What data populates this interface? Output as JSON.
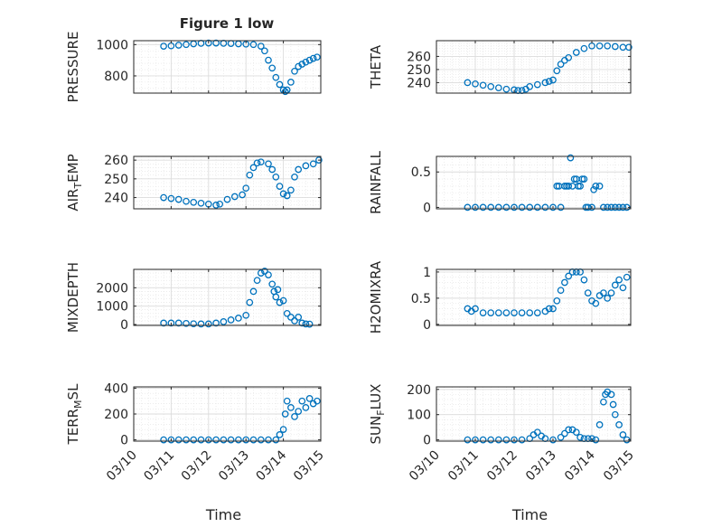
{
  "figure_title": "Figure 1 low",
  "marker_color": "#0072bd",
  "chart_data": [
    {
      "type": "scatter",
      "marker": "circle",
      "ylabel": "PRESSURE",
      "xlim": [
        0,
        5
      ],
      "ylim": [
        690,
        1025
      ],
      "yticks": [
        800,
        1000
      ],
      "yticklabels": [
        "800",
        "1000"
      ],
      "xticks": [
        0,
        1,
        2,
        3,
        4,
        5
      ],
      "xticklabels": [
        "03/10",
        "03/11",
        "03/12",
        "03/13",
        "03/14",
        "03/15"
      ],
      "grid": true,
      "minor_grid": true,
      "show_xticklabels": false,
      "xlabel": "",
      "x": [
        0.8,
        1.0,
        1.2,
        1.4,
        1.6,
        1.8,
        2.0,
        2.2,
        2.4,
        2.6,
        2.8,
        3.0,
        3.2,
        3.4,
        3.5,
        3.6,
        3.7,
        3.8,
        3.9,
        4.0,
        4.05,
        4.1,
        4.2,
        4.3,
        4.4,
        4.5,
        4.6,
        4.7,
        4.8,
        4.9
      ],
      "y": [
        990,
        992,
        996,
        1000,
        1005,
        1008,
        1010,
        1010,
        1008,
        1007,
        1005,
        1003,
        1000,
        990,
        960,
        900,
        850,
        790,
        745,
        710,
        700,
        710,
        760,
        830,
        860,
        875,
        888,
        900,
        912,
        920
      ]
    },
    {
      "type": "scatter",
      "marker": "circle",
      "ylabel": "THETA",
      "xlim": [
        0,
        5
      ],
      "ylim": [
        232,
        272
      ],
      "yticks": [
        240,
        250,
        260
      ],
      "yticklabels": [
        "240",
        "250",
        "260"
      ],
      "xticks": [
        0,
        1,
        2,
        3,
        4,
        5
      ],
      "xticklabels": [
        "03/10",
        "03/11",
        "03/12",
        "03/13",
        "03/14",
        "03/15"
      ],
      "grid": true,
      "minor_grid": true,
      "show_xticklabels": false,
      "xlabel": "",
      "x": [
        0.8,
        1.0,
        1.2,
        1.4,
        1.6,
        1.8,
        2.0,
        2.1,
        2.2,
        2.3,
        2.4,
        2.6,
        2.8,
        2.9,
        3.0,
        3.1,
        3.2,
        3.3,
        3.4,
        3.6,
        3.8,
        4.0,
        4.2,
        4.4,
        4.6,
        4.8,
        4.95
      ],
      "y": [
        240,
        239,
        238,
        237,
        236,
        235,
        234.5,
        234,
        234,
        235,
        237,
        238.5,
        240,
        241,
        242,
        249,
        254,
        257,
        259,
        263,
        266,
        268,
        268,
        268,
        267.5,
        267,
        267
      ]
    },
    {
      "type": "scatter",
      "marker": "circle",
      "ylabel": "AIR_TEMP",
      "xlim": [
        0,
        5
      ],
      "ylim": [
        234,
        262
      ],
      "yticks": [
        240,
        250,
        260
      ],
      "yticklabels": [
        "240",
        "250",
        "260"
      ],
      "xticks": [
        0,
        1,
        2,
        3,
        4,
        5
      ],
      "xticklabels": [
        "03/10",
        "03/11",
        "03/12",
        "03/13",
        "03/14",
        "03/15"
      ],
      "grid": true,
      "minor_grid": true,
      "show_xticklabels": false,
      "xlabel": "",
      "x": [
        0.8,
        1.0,
        1.2,
        1.4,
        1.6,
        1.8,
        2.0,
        2.2,
        2.3,
        2.5,
        2.7,
        2.9,
        3.0,
        3.1,
        3.2,
        3.3,
        3.4,
        3.6,
        3.7,
        3.8,
        3.9,
        4.0,
        4.1,
        4.2,
        4.3,
        4.4,
        4.6,
        4.8,
        4.95
      ],
      "y": [
        240,
        239.5,
        239,
        238,
        237.5,
        237,
        236.5,
        236,
        236.5,
        239,
        240.5,
        241.5,
        245,
        252,
        256,
        258.5,
        259,
        258,
        255,
        251,
        246,
        242,
        241,
        244,
        251,
        255,
        257,
        258,
        260
      ]
    },
    {
      "type": "scatter",
      "marker": "circle",
      "ylabel": "RAINFALL",
      "xlim": [
        0,
        5
      ],
      "ylim": [
        -0.02,
        0.72
      ],
      "yticks": [
        0,
        0.5
      ],
      "yticklabels": [
        "0",
        "0.5"
      ],
      "xticks": [
        0,
        1,
        2,
        3,
        4,
        5
      ],
      "xticklabels": [
        "03/10",
        "03/11",
        "03/12",
        "03/13",
        "03/14",
        "03/15"
      ],
      "grid": true,
      "minor_grid": true,
      "show_xticklabels": false,
      "xlabel": "",
      "x": [
        0.8,
        1.0,
        1.2,
        1.4,
        1.6,
        1.8,
        2.0,
        2.2,
        2.4,
        2.6,
        2.8,
        3.0,
        3.1,
        3.15,
        3.2,
        3.3,
        3.35,
        3.4,
        3.45,
        3.5,
        3.55,
        3.6,
        3.65,
        3.7,
        3.75,
        3.8,
        3.85,
        3.9,
        4.0,
        4.05,
        4.1,
        4.2,
        4.3,
        4.4,
        4.5,
        4.6,
        4.7,
        4.8,
        4.9
      ],
      "y": [
        0,
        0,
        0,
        0,
        0,
        0,
        0,
        0,
        0,
        0,
        0,
        0,
        0.3,
        0.3,
        0,
        0.3,
        0.3,
        0.3,
        0.7,
        0.3,
        0.4,
        0.4,
        0.3,
        0.3,
        0.4,
        0.4,
        0,
        0,
        0,
        0.25,
        0.3,
        0.3,
        0,
        0,
        0,
        0,
        0,
        0,
        0
      ]
    },
    {
      "type": "scatter",
      "marker": "circle",
      "ylabel": "MIXDEPTH",
      "xlim": [
        0,
        5
      ],
      "ylim": [
        -50,
        3000
      ],
      "yticks": [
        0,
        1000,
        2000
      ],
      "yticklabels": [
        "0",
        "1000",
        "2000"
      ],
      "xticks": [
        0,
        1,
        2,
        3,
        4,
        5
      ],
      "xticklabels": [
        "03/10",
        "03/11",
        "03/12",
        "03/13",
        "03/14",
        "03/15"
      ],
      "grid": true,
      "minor_grid": true,
      "show_xticklabels": false,
      "xlabel": "",
      "x": [
        0.8,
        1.0,
        1.2,
        1.4,
        1.6,
        1.8,
        2.0,
        2.2,
        2.4,
        2.6,
        2.8,
        3.0,
        3.1,
        3.2,
        3.3,
        3.4,
        3.5,
        3.6,
        3.7,
        3.75,
        3.8,
        3.85,
        3.9,
        4.0,
        4.1,
        4.2,
        4.3,
        4.4,
        4.5,
        4.6,
        4.7
      ],
      "y": [
        80,
        80,
        80,
        60,
        40,
        30,
        30,
        80,
        150,
        250,
        350,
        500,
        1200,
        1800,
        2400,
        2800,
        2900,
        2700,
        2200,
        1800,
        1500,
        1900,
        1200,
        1300,
        600,
        400,
        200,
        400,
        80,
        30,
        20
      ]
    },
    {
      "type": "scatter",
      "marker": "circle",
      "ylabel": "H2OMIXRA",
      "xlim": [
        0,
        5
      ],
      "ylim": [
        -0.02,
        1.05
      ],
      "yticks": [
        0,
        0.5,
        1
      ],
      "yticklabels": [
        "0",
        "0.5",
        "1"
      ],
      "xticks": [
        0,
        1,
        2,
        3,
        4,
        5
      ],
      "xticklabels": [
        "03/10",
        "03/11",
        "03/12",
        "03/13",
        "03/14",
        "03/15"
      ],
      "grid": true,
      "minor_grid": true,
      "show_xticklabels": false,
      "xlabel": "",
      "x": [
        0.8,
        0.9,
        1.0,
        1.2,
        1.4,
        1.6,
        1.8,
        2.0,
        2.2,
        2.4,
        2.6,
        2.8,
        2.9,
        3.0,
        3.1,
        3.2,
        3.3,
        3.4,
        3.5,
        3.6,
        3.7,
        3.8,
        3.9,
        4.0,
        4.1,
        4.2,
        4.3,
        4.4,
        4.5,
        4.6,
        4.7,
        4.8,
        4.9
      ],
      "y": [
        0.3,
        0.25,
        0.3,
        0.22,
        0.22,
        0.22,
        0.22,
        0.22,
        0.22,
        0.22,
        0.22,
        0.25,
        0.3,
        0.3,
        0.45,
        0.65,
        0.8,
        0.92,
        1.0,
        1.0,
        1.0,
        0.85,
        0.6,
        0.45,
        0.4,
        0.55,
        0.6,
        0.5,
        0.6,
        0.75,
        0.85,
        0.7,
        0.9
      ]
    },
    {
      "type": "scatter",
      "marker": "circle",
      "ylabel": "TERR_MSL",
      "xlim": [
        0,
        5
      ],
      "ylim": [
        -10,
        410
      ],
      "yticks": [
        0,
        200,
        400
      ],
      "yticklabels": [
        "0",
        "200",
        "400"
      ],
      "xticks": [
        0,
        1,
        2,
        3,
        4,
        5
      ],
      "xticklabels": [
        "03/10",
        "03/11",
        "03/12",
        "03/13",
        "03/14",
        "03/15"
      ],
      "grid": true,
      "minor_grid": true,
      "show_xticklabels": true,
      "xlabel": "Time",
      "x": [
        0.8,
        1.0,
        1.2,
        1.4,
        1.6,
        1.8,
        2.0,
        2.2,
        2.4,
        2.6,
        2.8,
        3.0,
        3.2,
        3.4,
        3.6,
        3.8,
        3.9,
        4.0,
        4.05,
        4.1,
        4.2,
        4.3,
        4.4,
        4.5,
        4.6,
        4.7,
        4.8,
        4.9
      ],
      "y": [
        0,
        0,
        0,
        0,
        0,
        0,
        0,
        0,
        0,
        0,
        0,
        0,
        0,
        0,
        0,
        0,
        40,
        80,
        200,
        300,
        250,
        180,
        220,
        300,
        250,
        320,
        280,
        300
      ]
    },
    {
      "type": "scatter",
      "marker": "circle",
      "ylabel": "SUN_FLUX",
      "xlim": [
        0,
        5
      ],
      "ylim": [
        -5,
        210
      ],
      "yticks": [
        0,
        100,
        200
      ],
      "yticklabels": [
        "0",
        "100",
        "200"
      ],
      "xticks": [
        0,
        1,
        2,
        3,
        4,
        5
      ],
      "xticklabels": [
        "03/10",
        "03/11",
        "03/12",
        "03/13",
        "03/14",
        "03/15"
      ],
      "grid": true,
      "minor_grid": true,
      "show_xticklabels": true,
      "xlabel": "Time",
      "x": [
        0.8,
        1.0,
        1.2,
        1.4,
        1.6,
        1.8,
        2.0,
        2.2,
        2.4,
        2.5,
        2.6,
        2.7,
        2.8,
        3.0,
        3.2,
        3.3,
        3.4,
        3.5,
        3.6,
        3.7,
        3.8,
        3.9,
        4.0,
        4.1,
        4.2,
        4.3,
        4.35,
        4.4,
        4.5,
        4.55,
        4.6,
        4.7,
        4.8,
        4.9
      ],
      "y": [
        0,
        0,
        0,
        0,
        0,
        0,
        0,
        0,
        5,
        20,
        30,
        15,
        5,
        0,
        10,
        25,
        40,
        40,
        30,
        10,
        5,
        5,
        5,
        0,
        60,
        150,
        180,
        190,
        180,
        140,
        100,
        60,
        20,
        0
      ]
    }
  ]
}
